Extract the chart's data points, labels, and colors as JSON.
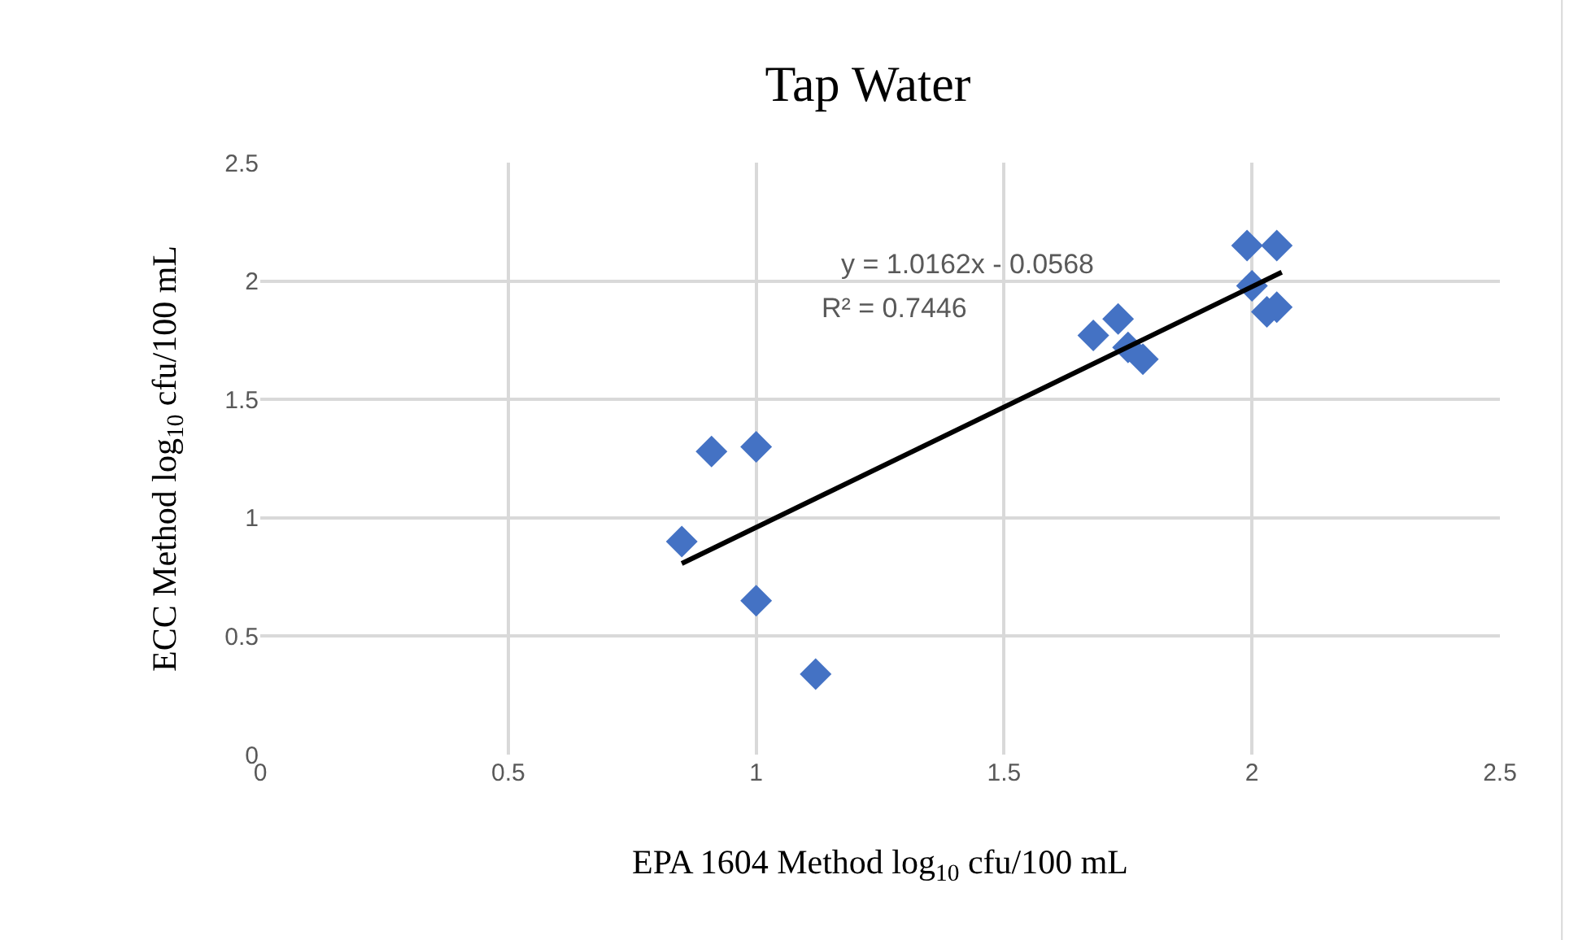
{
  "chart_data": {
    "type": "scatter",
    "title": "Tap Water",
    "xlabel": "EPA 1604 Method log$_{10}$ cfu/100 mL",
    "ylabel": "ECC Method log$_{10}$ cfu/100 mL",
    "annotations": [
      "y = 1.0162x - 0.0568",
      "R² = 0.7446"
    ],
    "series": [
      {
        "color": "#4472c4",
        "marker": "diamond",
        "x": [
          0.85,
          0.91,
          1.0,
          1.0,
          1.12,
          1.68,
          1.73,
          1.75,
          1.78,
          1.99,
          2.05,
          2.0,
          2.03,
          2.05
        ],
        "values": [
          0.9,
          1.28,
          1.3,
          0.65,
          0.34,
          1.77,
          1.84,
          1.72,
          1.67,
          2.15,
          2.15,
          1.98,
          1.87,
          1.89
        ]
      },
      {
        "type": "line",
        "color": "#000000",
        "x": [
          0.85,
          2.06
        ],
        "values": [
          0.807,
          2.037
        ]
      }
    ],
    "xlim": [
      0,
      2.5
    ],
    "xticks": [
      0,
      0.5,
      1,
      1.5,
      2,
      2.5
    ],
    "ylim": [
      0,
      2.5
    ],
    "yticks": [
      0,
      0.5,
      1,
      1.5,
      2,
      2.5
    ],
    "grid": true,
    "legend": false
  }
}
